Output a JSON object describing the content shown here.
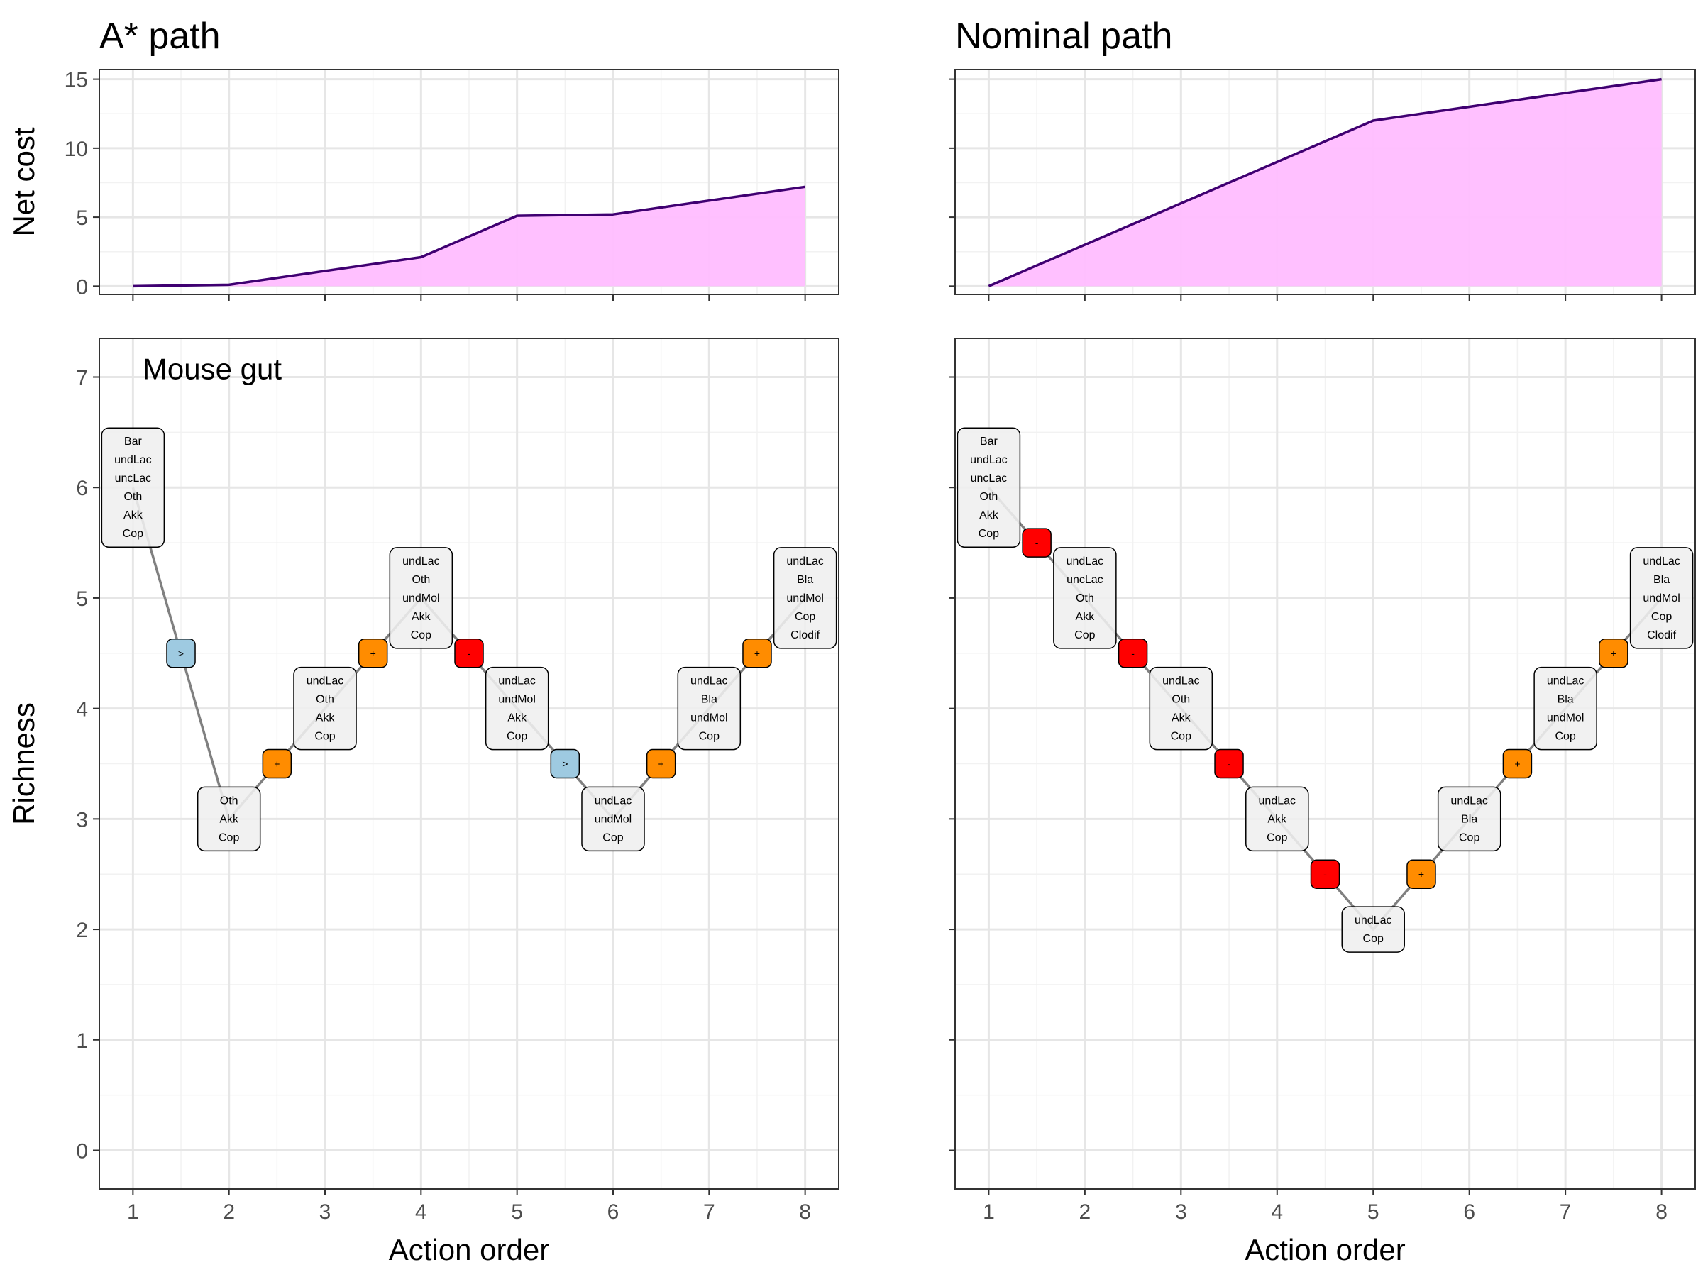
{
  "chart_data": [
    {
      "type": "area",
      "panel": "top-left",
      "title": "A* path",
      "xlabel": "",
      "ylabel": "Net cost",
      "x": [
        1,
        2,
        3,
        4,
        5,
        6,
        7,
        8
      ],
      "y": [
        0,
        0.1,
        1.1,
        2.1,
        5.1,
        5.2,
        6.2,
        7.2
      ],
      "xlim": [
        0.65,
        8.35
      ],
      "ylim": [
        -0.6,
        15.7
      ],
      "yticks": [
        0,
        5,
        10,
        15
      ],
      "xticks": [
        1,
        2,
        3,
        4,
        5,
        6,
        7,
        8
      ],
      "fill_color": "#ffbdff",
      "line_color": "#3f0071",
      "grid": true
    },
    {
      "type": "area",
      "panel": "top-right",
      "title": "Nominal path",
      "xlabel": "",
      "ylabel": "",
      "x": [
        1,
        2,
        3,
        4,
        5,
        6,
        7,
        8
      ],
      "y": [
        0,
        3,
        6,
        9,
        12,
        13,
        14,
        15
      ],
      "xlim": [
        0.65,
        8.35
      ],
      "ylim": [
        -0.6,
        15.7
      ],
      "yticks": [
        0,
        5,
        10,
        15
      ],
      "xticks": [
        1,
        2,
        3,
        4,
        5,
        6,
        7,
        8
      ],
      "fill_color": "#ffbdff",
      "line_color": "#3f0071",
      "grid": true
    },
    {
      "type": "line",
      "panel": "bottom-left",
      "title": "",
      "annotation": "Mouse gut",
      "xlabel": "Action order",
      "ylabel": "Richness",
      "xlim": [
        0.65,
        8.35
      ],
      "ylim": [
        -0.35,
        7.35
      ],
      "yticks": [
        0,
        1,
        2,
        3,
        4,
        5,
        6,
        7
      ],
      "xticks": [
        1,
        2,
        3,
        4,
        5,
        6,
        7,
        8
      ],
      "grid": true,
      "states": [
        {
          "x": 1,
          "y": 6,
          "taxa": [
            "Bar",
            "undLac",
            "uncLac",
            "Oth",
            "Akk",
            "Cop"
          ]
        },
        {
          "x": 2,
          "y": 3,
          "taxa": [
            "Oth",
            "Akk",
            "Cop"
          ]
        },
        {
          "x": 3,
          "y": 4,
          "taxa": [
            "undLac",
            "Oth",
            "Akk",
            "Cop"
          ]
        },
        {
          "x": 4,
          "y": 5,
          "taxa": [
            "undLac",
            "Oth",
            "undMol",
            "Akk",
            "Cop"
          ]
        },
        {
          "x": 5,
          "y": 4,
          "taxa": [
            "undLac",
            "undMol",
            "Akk",
            "Cop"
          ]
        },
        {
          "x": 6,
          "y": 3,
          "taxa": [
            "undLac",
            "undMol",
            "Cop"
          ]
        },
        {
          "x": 7,
          "y": 4,
          "taxa": [
            "undLac",
            "Bla",
            "undMol",
            "Cop"
          ]
        },
        {
          "x": 8,
          "y": 5,
          "taxa": [
            "undLac",
            "Bla",
            "undMol",
            "Cop",
            "Clodif"
          ]
        }
      ],
      "actions": [
        {
          "x": 1.5,
          "y": 4.5,
          "symbol": ">",
          "kind": "shift"
        },
        {
          "x": 2.5,
          "y": 3.5,
          "symbol": "+",
          "kind": "add"
        },
        {
          "x": 3.5,
          "y": 4.5,
          "symbol": "+",
          "kind": "add"
        },
        {
          "x": 4.5,
          "y": 4.5,
          "symbol": "-",
          "kind": "remove"
        },
        {
          "x": 5.5,
          "y": 3.5,
          "symbol": ">",
          "kind": "shift"
        },
        {
          "x": 6.5,
          "y": 3.5,
          "symbol": "+",
          "kind": "add"
        },
        {
          "x": 7.5,
          "y": 4.5,
          "symbol": "+",
          "kind": "add"
        }
      ]
    },
    {
      "type": "line",
      "panel": "bottom-right",
      "title": "",
      "xlabel": "Action order",
      "ylabel": "",
      "xlim": [
        0.65,
        8.35
      ],
      "ylim": [
        -0.35,
        7.35
      ],
      "yticks": [
        0,
        1,
        2,
        3,
        4,
        5,
        6,
        7
      ],
      "xticks": [
        1,
        2,
        3,
        4,
        5,
        6,
        7,
        8
      ],
      "grid": true,
      "states": [
        {
          "x": 1,
          "y": 6,
          "taxa": [
            "Bar",
            "undLac",
            "uncLac",
            "Oth",
            "Akk",
            "Cop"
          ]
        },
        {
          "x": 2,
          "y": 5,
          "taxa": [
            "undLac",
            "uncLac",
            "Oth",
            "Akk",
            "Cop"
          ]
        },
        {
          "x": 3,
          "y": 4,
          "taxa": [
            "undLac",
            "Oth",
            "Akk",
            "Cop"
          ]
        },
        {
          "x": 4,
          "y": 3,
          "taxa": [
            "undLac",
            "Akk",
            "Cop"
          ]
        },
        {
          "x": 5,
          "y": 2,
          "taxa": [
            "undLac",
            "Cop"
          ]
        },
        {
          "x": 6,
          "y": 3,
          "taxa": [
            "undLac",
            "Bla",
            "Cop"
          ]
        },
        {
          "x": 7,
          "y": 4,
          "taxa": [
            "undLac",
            "Bla",
            "undMol",
            "Cop"
          ]
        },
        {
          "x": 8,
          "y": 5,
          "taxa": [
            "undLac",
            "Bla",
            "undMol",
            "Cop",
            "Clodif"
          ]
        }
      ],
      "actions": [
        {
          "x": 1.5,
          "y": 5.5,
          "symbol": "-",
          "kind": "remove"
        },
        {
          "x": 2.5,
          "y": 4.5,
          "symbol": "-",
          "kind": "remove"
        },
        {
          "x": 3.5,
          "y": 3.5,
          "symbol": "-",
          "kind": "remove"
        },
        {
          "x": 4.5,
          "y": 2.5,
          "symbol": "-",
          "kind": "remove"
        },
        {
          "x": 5.5,
          "y": 2.5,
          "symbol": "+",
          "kind": "add"
        },
        {
          "x": 6.5,
          "y": 3.5,
          "symbol": "+",
          "kind": "add"
        },
        {
          "x": 7.5,
          "y": 4.5,
          "symbol": "+",
          "kind": "add"
        }
      ]
    }
  ],
  "colors": {
    "shift": "#9ecae1",
    "add": "#ff8c00",
    "remove": "#ff0000",
    "node_fill": "#efefef",
    "path_line": "#808080",
    "grid_major": "#e6e6e6",
    "grid_minor": "#f2f2f2",
    "panel_border": "#333333",
    "tick_text": "#4d4d4d"
  }
}
